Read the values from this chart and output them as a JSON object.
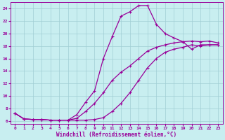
{
  "xlabel": "Windchill (Refroidissement éolien,°C)",
  "bg_color": "#c8eef0",
  "grid_color": "#a0cdd4",
  "line_color": "#990099",
  "xlim_min": -0.5,
  "xlim_max": 23.5,
  "ylim_min": 5.5,
  "ylim_max": 25.0,
  "yticks": [
    6,
    8,
    10,
    12,
    14,
    16,
    18,
    20,
    22,
    24
  ],
  "xticks": [
    0,
    1,
    2,
    3,
    4,
    5,
    6,
    7,
    8,
    9,
    10,
    11,
    12,
    13,
    14,
    15,
    16,
    17,
    18,
    19,
    20,
    21,
    22,
    23
  ],
  "line1_x": [
    0,
    1,
    2,
    3,
    4,
    5,
    6,
    7,
    8,
    9,
    10,
    11,
    12,
    13,
    14,
    15,
    16,
    17,
    18,
    19,
    20,
    21,
    22,
    23
  ],
  "line1_y": [
    7.2,
    6.3,
    6.2,
    6.2,
    6.1,
    6.1,
    6.1,
    7.0,
    9.0,
    10.8,
    16.0,
    19.5,
    22.8,
    23.5,
    24.5,
    24.5,
    21.5,
    20.0,
    19.3,
    18.7,
    17.5,
    18.2,
    18.2,
    18.2
  ],
  "line2_x": [
    0,
    1,
    2,
    3,
    4,
    5,
    6,
    7,
    8,
    9,
    10,
    11,
    12,
    13,
    14,
    15,
    16,
    17,
    18,
    19,
    20,
    21,
    22,
    23
  ],
  "line2_y": [
    7.2,
    6.3,
    6.2,
    6.2,
    6.1,
    6.1,
    6.1,
    6.1,
    6.1,
    6.2,
    6.5,
    7.5,
    8.8,
    10.5,
    12.5,
    14.5,
    16.0,
    17.0,
    17.5,
    17.8,
    18.2,
    18.0,
    18.2,
    18.2
  ],
  "line3_x": [
    0,
    1,
    2,
    3,
    4,
    5,
    6,
    7,
    8,
    9,
    10,
    11,
    12,
    13,
    14,
    15,
    16,
    17,
    18,
    19,
    20,
    21,
    22,
    23
  ],
  "line3_y": [
    7.2,
    6.3,
    6.2,
    6.2,
    6.1,
    6.1,
    6.1,
    6.4,
    7.5,
    8.8,
    10.5,
    12.5,
    13.8,
    14.8,
    16.0,
    17.2,
    17.8,
    18.2,
    18.5,
    18.7,
    18.8,
    18.7,
    18.8,
    18.5
  ]
}
